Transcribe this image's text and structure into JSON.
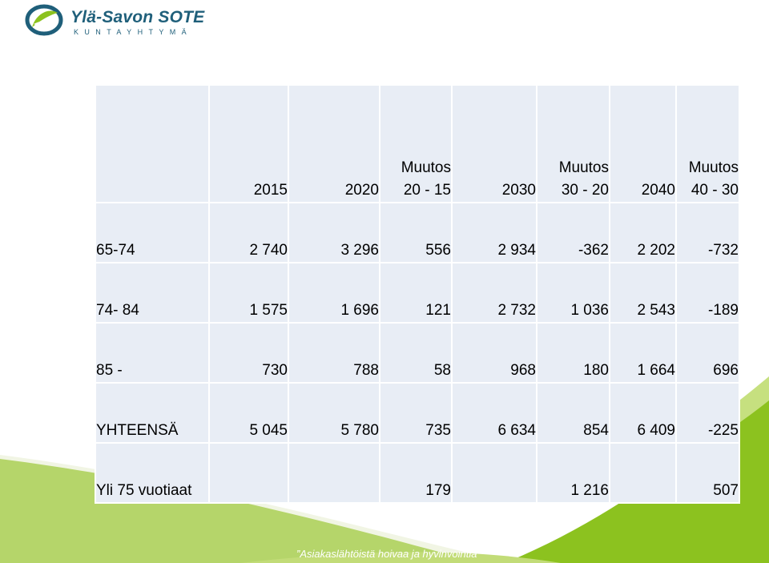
{
  "logo": {
    "title": "Ylä-Savon SOTE",
    "subtitle": "KUNTAYHTYMÄ",
    "icon": "leaf-swirl-logo"
  },
  "colors": {
    "brand_blue": "#1f5f7a",
    "brand_green": "#8cc21f",
    "table_cell": "#e8edf5"
  },
  "table": {
    "headers": [
      {
        "line1": "",
        "line2": ""
      },
      {
        "line1": "",
        "line2": "2015"
      },
      {
        "line1": "",
        "line2": "2020"
      },
      {
        "line1": "Muutos",
        "line2": "20 - 15"
      },
      {
        "line1": "",
        "line2": "2030"
      },
      {
        "line1": "Muutos",
        "line2": "30 - 20"
      },
      {
        "line1": "",
        "line2": "2040"
      },
      {
        "line1": "Muutos",
        "line2": "40 - 30"
      }
    ],
    "rows": [
      [
        "65-74",
        "2 740",
        "3 296",
        "556",
        "2 934",
        "-362",
        "2 202",
        "-732"
      ],
      [
        "74- 84",
        "1 575",
        "1 696",
        "121",
        "2 732",
        "1 036",
        "2 543",
        "-189"
      ],
      [
        "85 -",
        "730",
        "788",
        "58",
        "968",
        "180",
        "1 664",
        "696"
      ],
      [
        "YHTEENSÄ",
        "5 045",
        "5 780",
        "735",
        "6 634",
        "854",
        "6 409",
        "-225"
      ],
      [
        "Yli 75 vuotiaat",
        "",
        "",
        "179",
        "",
        "1 216",
        "",
        "507"
      ]
    ]
  },
  "footer": {
    "slogan": "”Asiakaslähtöistä hoivaa ja hyvinvointia”"
  }
}
